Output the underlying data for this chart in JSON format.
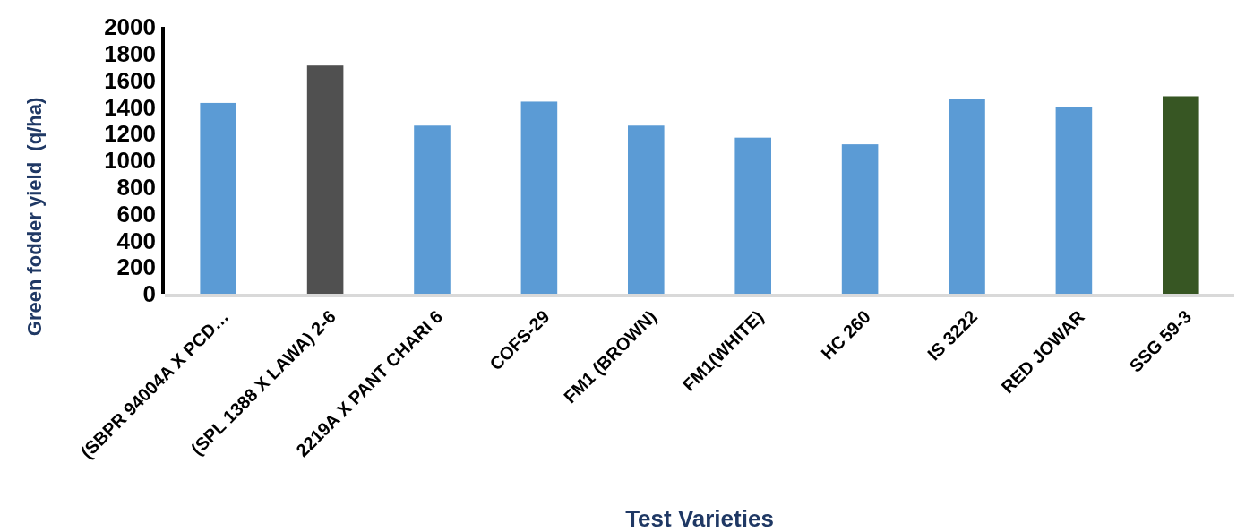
{
  "chart_data": {
    "type": "bar",
    "xlabel": "Test Varieties",
    "ylabel": "Green fodder yield  (q/ha)",
    "categories": [
      "(SBPR 94004A X PCD…",
      "(SPL 1388 X LAWA) 2-6",
      "2219A X PANT CHARI 6",
      "COFS-29",
      "FM1 (BROWN)",
      "FM1(WHITE)",
      "HC 260",
      "IS 3222",
      "RED JOWAR",
      "SSG 59-3"
    ],
    "values": [
      1430,
      1710,
      1260,
      1440,
      1260,
      1170,
      1120,
      1460,
      1400,
      1480
    ],
    "colors": [
      "#5b9bd5",
      "#505050",
      "#5b9bd5",
      "#5b9bd5",
      "#5b9bd5",
      "#5b9bd5",
      "#5b9bd5",
      "#5b9bd5",
      "#5b9bd5",
      "#375623"
    ],
    "ylim": [
      0,
      2000
    ],
    "yticks": [
      0,
      200,
      400,
      600,
      800,
      1000,
      1200,
      1400,
      1600,
      1800,
      2000
    ],
    "grid": false
  }
}
